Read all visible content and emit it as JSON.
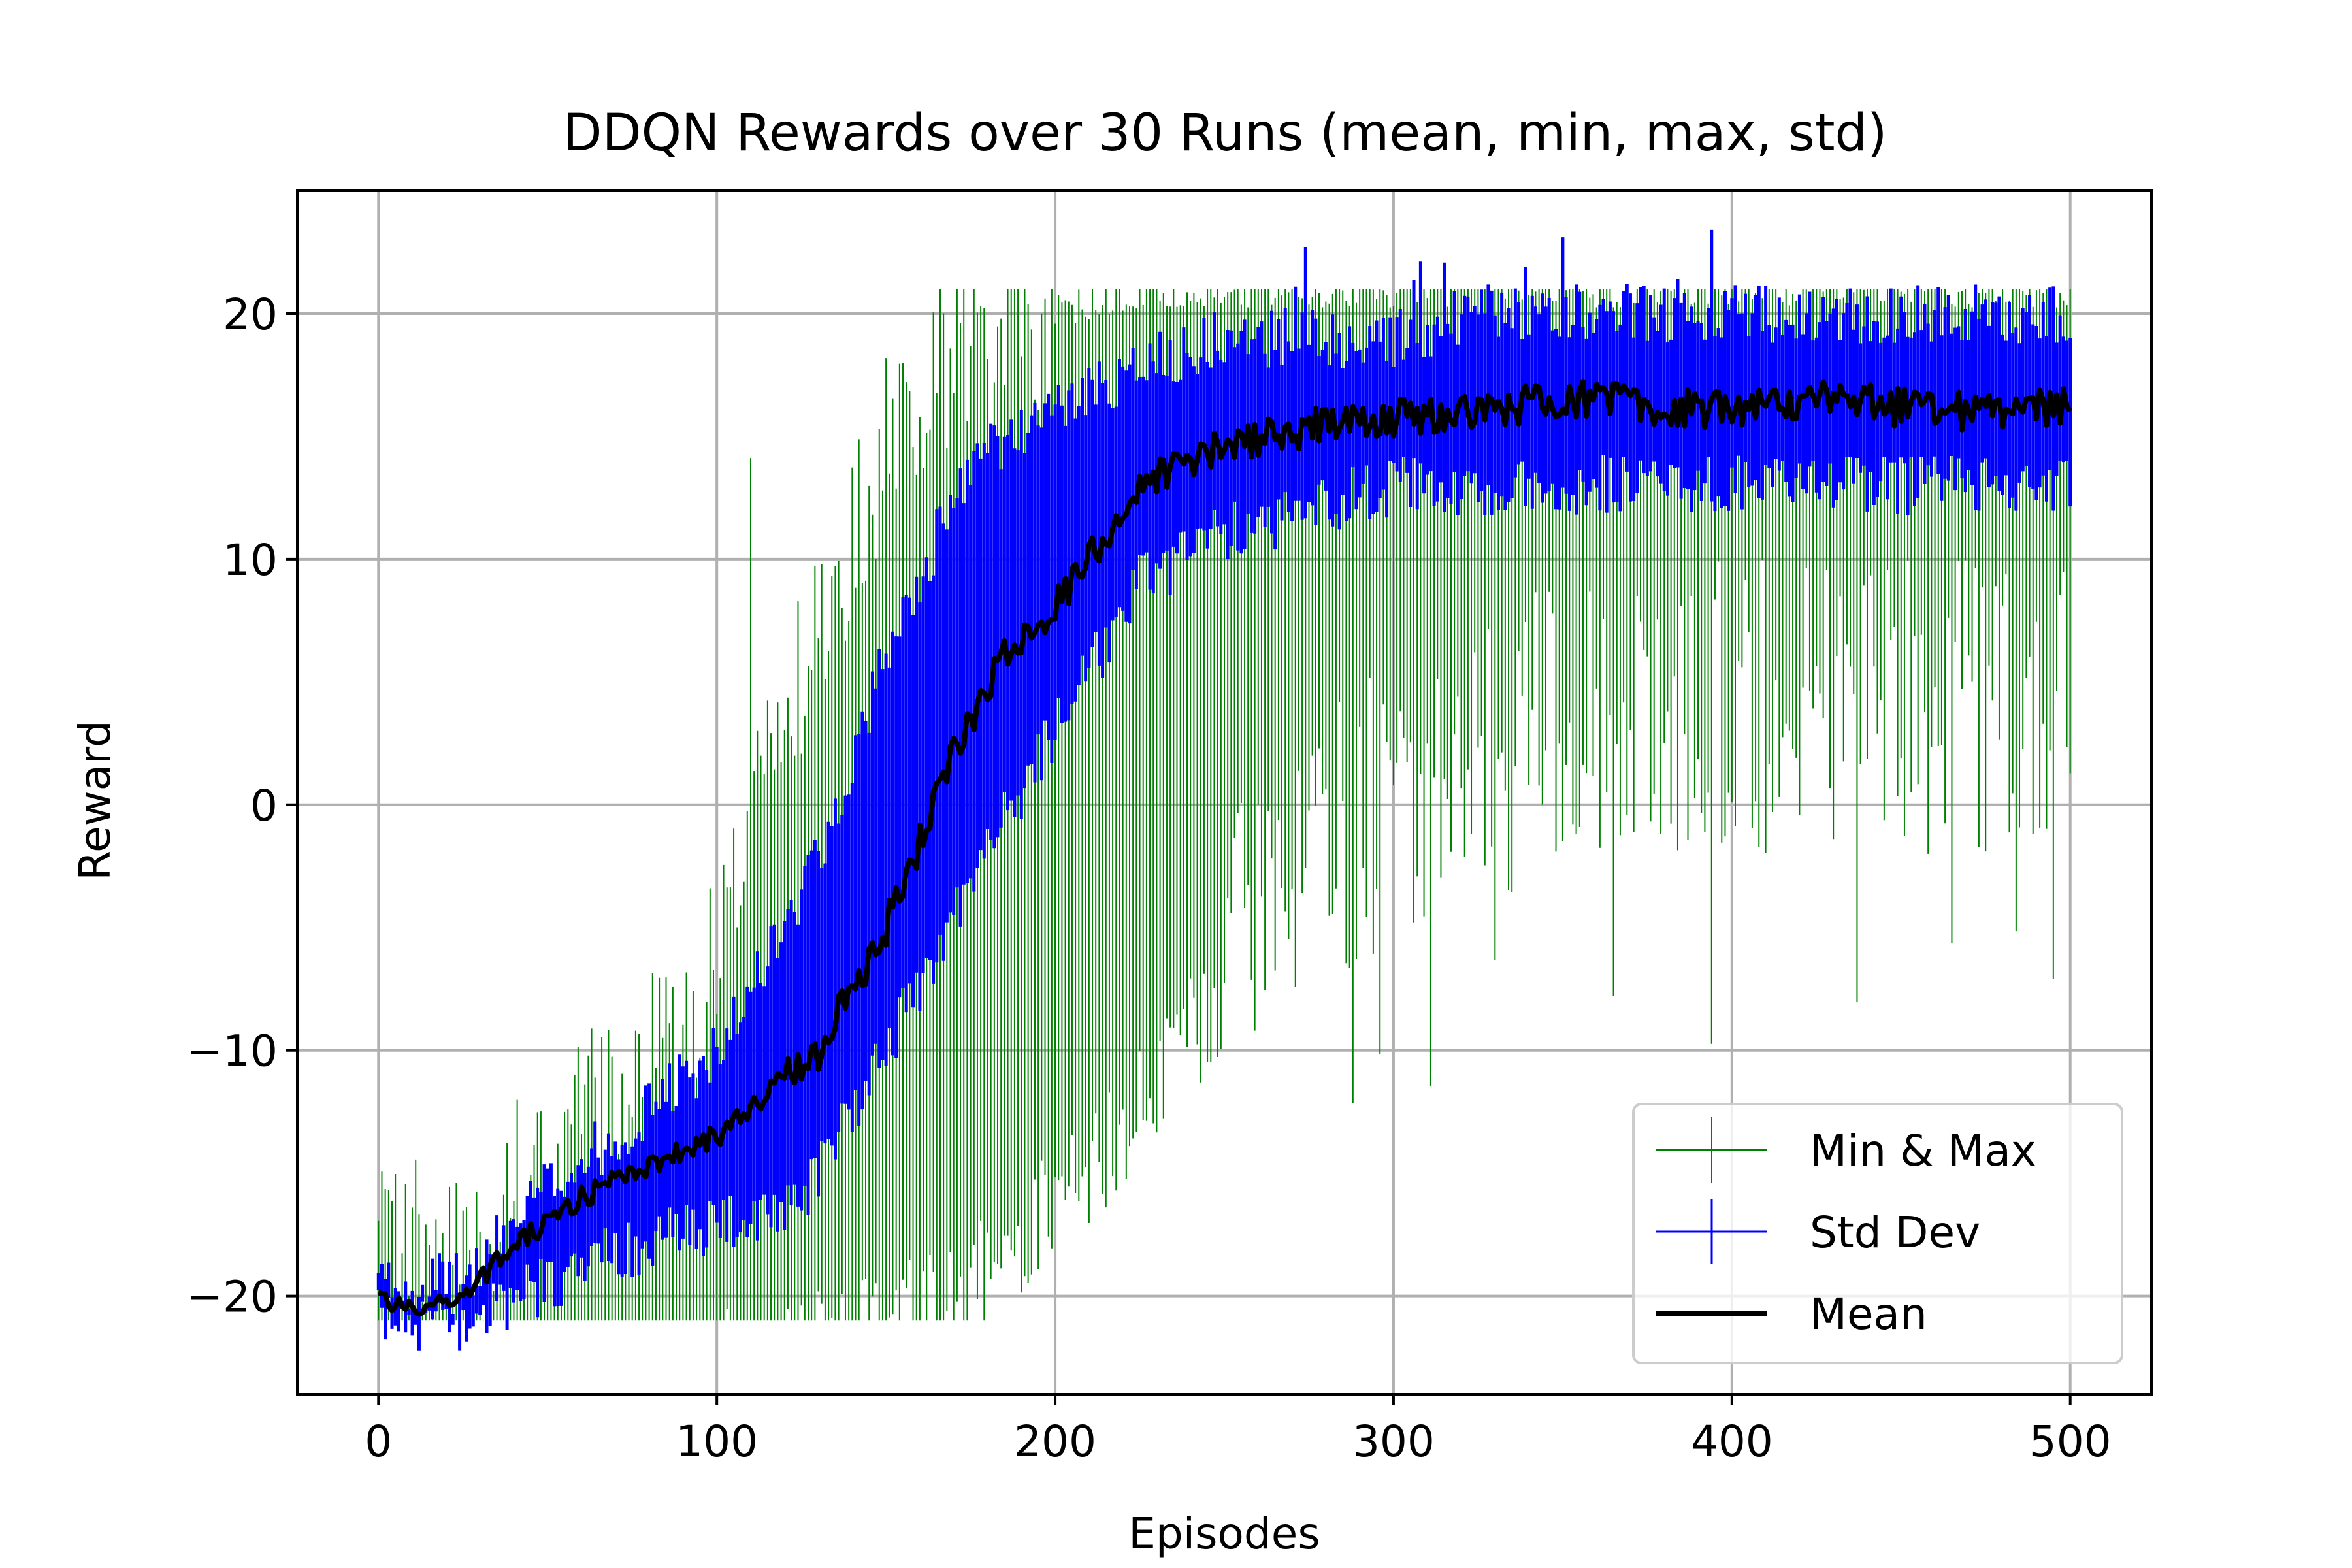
{
  "chart_data": {
    "type": "line",
    "title": "DDQN Rewards over 30 Runs (mean, min, max, std)",
    "xlabel": "Episodes",
    "ylabel": "Reward",
    "xlim": [
      -24,
      524
    ],
    "ylim": [
      -24,
      25
    ],
    "xticks": [
      0,
      100,
      200,
      300,
      400,
      500
    ],
    "yticks": [
      -20,
      -10,
      0,
      10,
      20
    ],
    "xtick_labels": [
      "0",
      "100",
      "200",
      "300",
      "400",
      "500"
    ],
    "ytick_labels": [
      "−20",
      "−10",
      "0",
      "10",
      "20"
    ],
    "grid": true,
    "legend_position": "lower-right",
    "n_episodes": 500,
    "series": [
      {
        "name": "Min & Max",
        "kind": "errorbar",
        "color": "#008000",
        "description_points": {
          "x": [
            0,
            25,
            50,
            75,
            100,
            125,
            150,
            175,
            200,
            225,
            250,
            275,
            300,
            325,
            350,
            375,
            400,
            425,
            450,
            475,
            500
          ],
          "min": [
            -21,
            -21,
            -21,
            -21,
            -20,
            -20,
            -19,
            -17,
            -14,
            -10,
            -5,
            -1,
            1,
            3,
            4,
            5,
            5,
            5,
            5,
            5,
            5
          ],
          "max": [
            -18,
            -18,
            -14,
            -12,
            -6,
            5,
            15,
            19,
            20,
            21,
            21,
            21,
            21,
            21,
            21,
            21,
            21,
            21,
            21,
            21,
            21
          ]
        }
      },
      {
        "name": "Std Dev",
        "kind": "errorbar",
        "color": "#0000ff",
        "description_points": {
          "x": [
            0,
            25,
            50,
            75,
            100,
            125,
            150,
            175,
            200,
            225,
            250,
            275,
            300,
            325,
            350,
            375,
            400,
            425,
            450,
            475,
            500
          ],
          "lower": [
            -21,
            -21,
            -19.5,
            -18,
            -17,
            -16,
            -10,
            -3,
            3,
            9,
            11,
            12,
            13,
            13,
            13,
            13,
            13,
            13,
            13,
            13,
            13
          ],
          "upper": [
            -19.5,
            -19.5,
            -15.5,
            -13,
            -10,
            -4,
            6,
            14,
            16,
            18,
            19,
            19,
            19,
            20,
            20,
            20,
            20,
            20,
            20,
            20,
            20
          ]
        }
      },
      {
        "name": "Mean",
        "kind": "line",
        "color": "#000000",
        "description_points": {
          "x": [
            0,
            10,
            25,
            40,
            50,
            60,
            75,
            90,
            100,
            110,
            120,
            130,
            140,
            150,
            160,
            170,
            180,
            190,
            200,
            210,
            220,
            230,
            240,
            250,
            260,
            270,
            280,
            290,
            300,
            325,
            350,
            375,
            400,
            425,
            450,
            475,
            500
          ],
          "y": [
            -20,
            -20.6,
            -20,
            -18,
            -17,
            -16,
            -15,
            -14,
            -13.5,
            -12.5,
            -11,
            -10,
            -7.5,
            -5,
            -1.5,
            2,
            5,
            7,
            8,
            10,
            12,
            13.5,
            14,
            14.5,
            15,
            15.2,
            15.5,
            15.6,
            15.8,
            16,
            16.5,
            16.3,
            16,
            16.5,
            16.2,
            16,
            16.3
          ]
        }
      }
    ]
  }
}
